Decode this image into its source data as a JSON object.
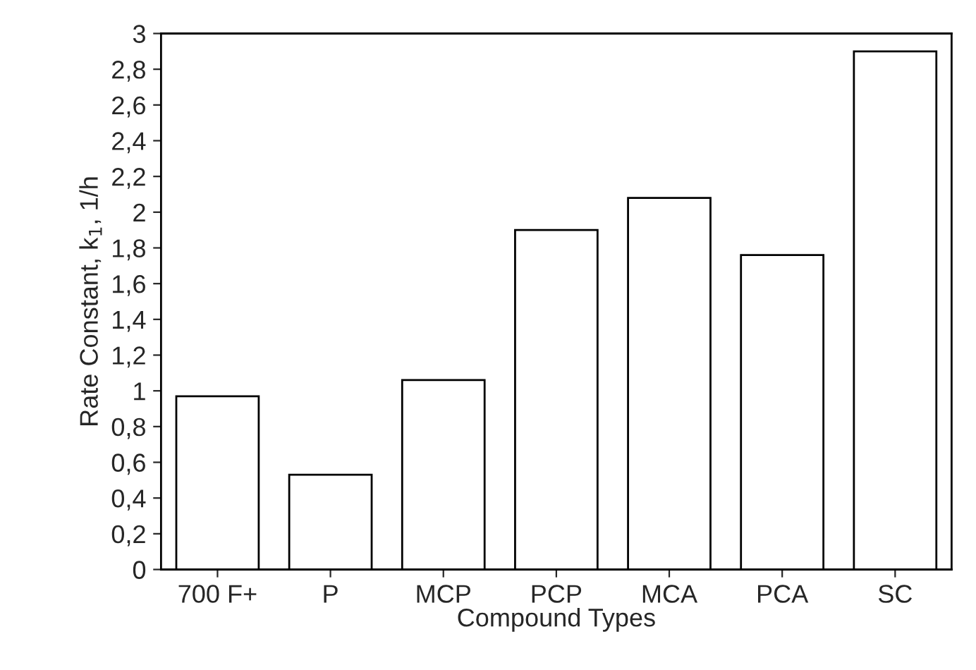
{
  "chart_data": {
    "type": "bar",
    "xlabel": "Compound Types",
    "ylabel": "Rate Constant, k$_{1}$, 1/h",
    "categories": [
      "700 F+",
      "P",
      "MCP",
      "PCP",
      "MCA",
      "PCA",
      "SC"
    ],
    "values": [
      0.97,
      0.53,
      1.06,
      1.9,
      2.08,
      1.76,
      2.9
    ],
    "color": "#ffffff",
    "ylim": [
      0,
      3
    ],
    "yticks": [
      0,
      {
        "value": 0.2,
        "label": "0,2"
      },
      {
        "value": 0.4,
        "label": "0,4"
      },
      {
        "value": 0.6,
        "label": "0,6"
      },
      {
        "value": 0.8,
        "label": "0,8"
      },
      1,
      {
        "value": 1.2,
        "label": "1,2"
      },
      {
        "value": 1.4,
        "label": "1,4"
      },
      {
        "value": 1.6,
        "label": "1,6"
      },
      {
        "value": 1.8,
        "label": "1,8"
      },
      2,
      {
        "value": 2.2,
        "label": "2,2"
      },
      {
        "value": 2.4,
        "label": "2,4"
      },
      {
        "value": 2.6,
        "label": "2,6"
      },
      {
        "value": 2.8,
        "label": "2,8"
      },
      3
    ],
    "grid": false
  }
}
